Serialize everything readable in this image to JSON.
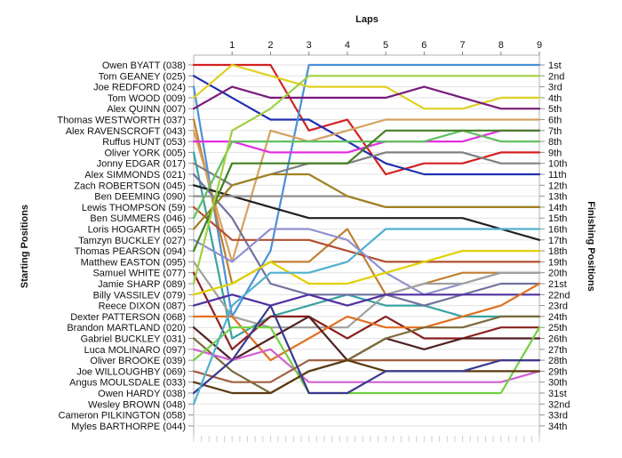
{
  "chart_data": {
    "type": "line",
    "title": "",
    "xlabel": "Laps",
    "ylabel_left": "Starting Positions",
    "ylabel_right": "Finishing Positions",
    "x_ticks": [
      1,
      2,
      3,
      4,
      5,
      6,
      7,
      8,
      9
    ],
    "x_range": [
      0,
      9
    ],
    "y_range": [
      1,
      34
    ],
    "grid": "horizontal",
    "starting_grid": [
      "Owen BYATT (038)",
      "Tom GEANEY (025)",
      "Joe REDFORD (024)",
      "Tom WOOD (009)",
      "Alex QUINN (007)",
      "Thomas WESTWORTH (037)",
      "Alex RAVENSCROFT (043)",
      "Ruffus HUNT (053)",
      "Oliver YORK (005)",
      "Jonny EDGAR (017)",
      "Alex SIMMONDS (021)",
      "Zach ROBERTSON (045)",
      "Ben DEEMING (090)",
      "Lewis THOMPSON (59)",
      "Ben SUMMERS (046)",
      "Loris HOGARTH (065)",
      "Tamzyn BUCKLEY (027)",
      "Thomas PEARSON (094)",
      "Matthew EASTON (095)",
      "Samuel WHITE (077)",
      "Jamie SHARP (089)",
      "Billy VASSILEV (079)",
      "Reece DIXON (087)",
      "Dexter PATTERSON (068)",
      "Brandon MARTLAND (020)",
      "Gabriel BUCKLEY (031)",
      "Luca MOLINARO (097)",
      "Oliver BROOKE (039)",
      "Joe WILLOUGHBY (069)",
      "Angus MOULSDALE (033)",
      "Owen HARDY (038)",
      "Wesley BROWN (048)",
      "Cameron PILKINGTON (058)",
      "Myles BARTHORPE (044)"
    ],
    "finishing_positions": [
      "1st",
      "2nd",
      "3rd",
      "4th",
      "5th",
      "6th",
      "7th",
      "8th",
      "9th",
      "10th",
      "11th",
      "12th",
      "13th",
      "14th",
      "15th",
      "16th",
      "17th",
      "18th",
      "19th",
      "20th",
      "21st",
      "22nd",
      "23rd",
      "24th",
      "25th",
      "26th",
      "27th",
      "28th",
      "29th",
      "30th",
      "31st",
      "32nd",
      "33rd",
      "34th"
    ],
    "x": [
      0,
      1,
      2,
      3,
      4,
      5,
      6,
      7,
      8,
      9
    ],
    "series": [
      {
        "color": "#d42020",
        "positions": [
          1,
          1,
          1,
          7,
          6,
          11,
          10,
          10,
          9,
          9
        ]
      },
      {
        "color": "#2030b0",
        "positions": [
          2,
          4,
          6,
          6,
          8,
          10,
          11,
          11,
          11,
          11
        ]
      },
      {
        "color": "#4a90d9",
        "positions": [
          3,
          24,
          18,
          1,
          1,
          1,
          1,
          1,
          1,
          1
        ]
      },
      {
        "color": "#e0d020",
        "positions": [
          4,
          1,
          2,
          3,
          3,
          3,
          5,
          5,
          4,
          4
        ]
      },
      {
        "color": "#7a1a7a",
        "positions": [
          5,
          3,
          4,
          4,
          4,
          4,
          3,
          4,
          5,
          5
        ]
      },
      {
        "color": "#c08030",
        "positions": [
          6,
          21,
          19,
          19,
          16,
          22,
          21,
          20,
          20,
          20
        ]
      },
      {
        "color": "#d6a060",
        "positions": [
          7,
          19,
          7,
          8,
          7,
          6,
          6,
          6,
          6,
          6
        ]
      },
      {
        "color": "#e030e0",
        "positions": [
          8,
          8,
          9,
          9,
          9,
          8,
          8,
          8,
          7,
          7
        ]
      },
      {
        "color": "#3aa3a0",
        "positions": [
          9,
          26,
          24,
          23,
          22,
          23,
          23,
          24,
          24,
          24
        ]
      },
      {
        "color": "#808080",
        "positions": [
          10,
          12,
          11,
          10,
          10,
          9,
          9,
          9,
          10,
          10
        ]
      },
      {
        "color": "#7070a0",
        "positions": [
          11,
          15,
          21,
          22,
          22,
          22,
          23,
          22,
          21,
          21
        ]
      },
      {
        "color": "#202020",
        "positions": [
          12,
          13,
          14,
          15,
          15,
          15,
          15,
          15,
          16,
          17
        ]
      },
      {
        "color": "#909090",
        "positions": [
          13,
          13,
          13,
          13,
          13,
          14,
          14,
          14,
          14,
          14
        ]
      },
      {
        "color": "#b05030",
        "positions": [
          14,
          17,
          17,
          17,
          18,
          19,
          19,
          19,
          19,
          19
        ]
      },
      {
        "color": "#60c060",
        "positions": [
          15,
          8,
          8,
          8,
          8,
          8,
          8,
          7,
          8,
          8
        ]
      },
      {
        "color": "#a08020",
        "positions": [
          16,
          12,
          11,
          11,
          13,
          14,
          14,
          14,
          14,
          14
        ]
      },
      {
        "color": "#9090d0",
        "positions": [
          17,
          19,
          16,
          16,
          17,
          20,
          22,
          21,
          20,
          20
        ]
      },
      {
        "color": "#408020",
        "positions": [
          18,
          10,
          10,
          10,
          10,
          7,
          7,
          7,
          7,
          7
        ]
      },
      {
        "color": "#a0a0a0",
        "positions": [
          19,
          24,
          25,
          25,
          25,
          22,
          21,
          21,
          20,
          20
        ]
      },
      {
        "color": "#8a1f1f",
        "positions": [
          20,
          27,
          24,
          24,
          26,
          24,
          26,
          26,
          25,
          25
        ]
      },
      {
        "color": "#a0d040",
        "positions": [
          21,
          7,
          5,
          2,
          2,
          2,
          2,
          2,
          2,
          2
        ]
      },
      {
        "color": "#e0d000",
        "positions": [
          22,
          21,
          19,
          21,
          21,
          20,
          19,
          18,
          18,
          18
        ]
      },
      {
        "color": "#5030a0",
        "positions": [
          23,
          22,
          23,
          22,
          23,
          22,
          22,
          22,
          22,
          22
        ]
      },
      {
        "color": "#e07020",
        "positions": [
          24,
          24,
          28,
          26,
          24,
          25,
          25,
          24,
          23,
          21
        ]
      },
      {
        "color": "#502020",
        "positions": [
          25,
          28,
          26,
          24,
          28,
          26,
          27,
          26,
          26,
          26
        ]
      },
      {
        "color": "#7a6a3a",
        "positions": [
          26,
          29,
          31,
          29,
          28,
          26,
          25,
          25,
          24,
          24
        ]
      },
      {
        "color": "#d060d0",
        "positions": [
          27,
          28,
          27,
          30,
          30,
          30,
          30,
          30,
          30,
          29
        ]
      },
      {
        "color": "#70d040",
        "positions": [
          28,
          25,
          25,
          31,
          31,
          31,
          31,
          31,
          31,
          25
        ]
      },
      {
        "color": "#a06040",
        "positions": [
          29,
          30,
          30,
          28,
          28,
          28,
          28,
          28,
          28,
          28
        ]
      },
      {
        "color": "#5a3a10",
        "positions": [
          30,
          31,
          31,
          29,
          28,
          29,
          29,
          29,
          29,
          29
        ]
      },
      {
        "color": "#3a3a90",
        "positions": [
          31,
          28,
          23,
          31,
          31,
          29,
          29,
          29,
          28,
          28
        ]
      },
      {
        "color": "#50b0d0",
        "positions": [
          32,
          23,
          20,
          20,
          19,
          16,
          16,
          16,
          16,
          16
        ]
      }
    ]
  }
}
